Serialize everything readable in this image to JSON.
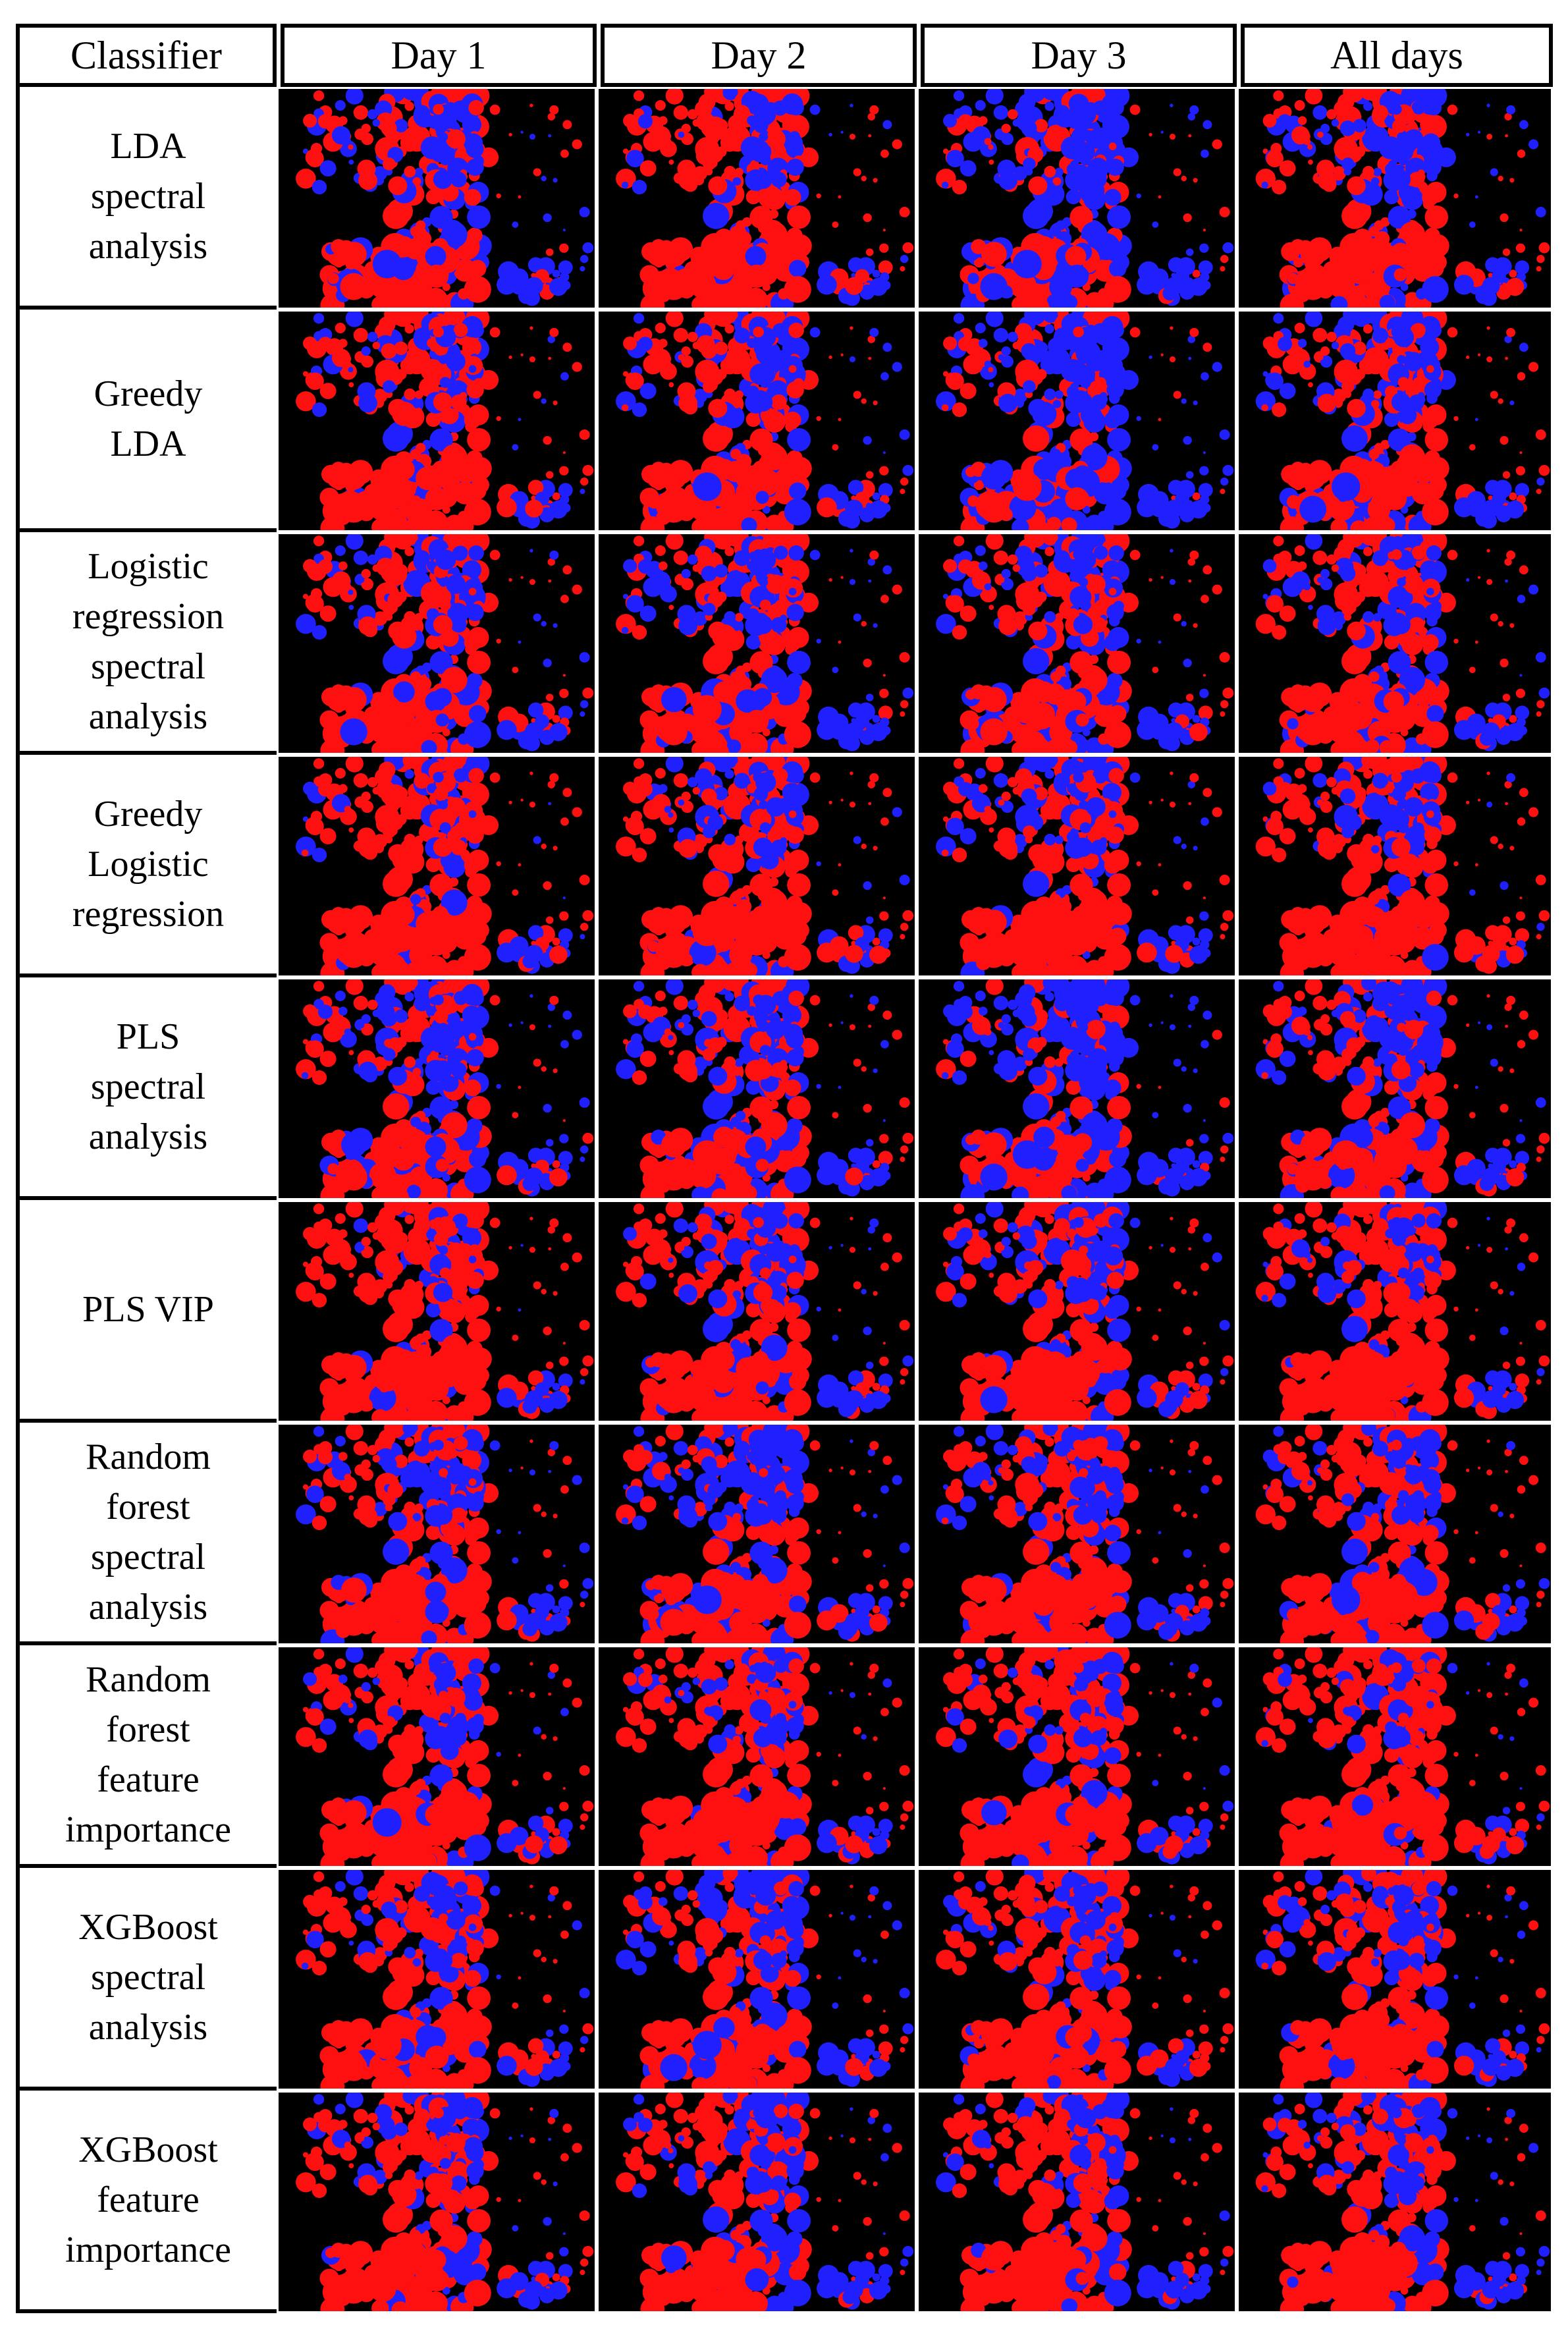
{
  "header": {
    "classifier_label": "Classifier",
    "columns": [
      "Day 1",
      "Day 2",
      "Day 3",
      "All days"
    ]
  },
  "rows": [
    {
      "label": "LDA\nspectral\nanalysis",
      "blue_share": [
        0.4,
        0.25,
        0.6,
        0.35
      ]
    },
    {
      "label": "Greedy\nLDA",
      "blue_share": [
        0.3,
        0.35,
        0.65,
        0.4
      ]
    },
    {
      "label": "Logistic\nregression\nspectral\nanalysis",
      "blue_share": [
        0.35,
        0.4,
        0.4,
        0.35
      ]
    },
    {
      "label": "Greedy\nLogistic\nregression",
      "blue_share": [
        0.2,
        0.25,
        0.3,
        0.25
      ]
    },
    {
      "label": "PLS\nspectral\nanalysis",
      "blue_share": [
        0.45,
        0.4,
        0.6,
        0.4
      ]
    },
    {
      "label": "PLS VIP",
      "blue_share": [
        0.15,
        0.3,
        0.35,
        0.25
      ]
    },
    {
      "label": "Random\nforest\nspectral\nanalysis",
      "blue_share": [
        0.3,
        0.45,
        0.3,
        0.3
      ]
    },
    {
      "label": "Random\nforest\nfeature\nimportance",
      "blue_share": [
        0.2,
        0.25,
        0.2,
        0.2
      ]
    },
    {
      "label": "XGBoost\nspectral\nanalysis",
      "blue_share": [
        0.35,
        0.4,
        0.3,
        0.3
      ]
    },
    {
      "label": "XGBoost\nfeature\nimportance",
      "blue_share": [
        0.3,
        0.4,
        0.3,
        0.3
      ]
    }
  ],
  "colors": {
    "background": "#000000",
    "class_a": "#ff1010",
    "class_b": "#2020ff",
    "grid_line": "#000000"
  }
}
